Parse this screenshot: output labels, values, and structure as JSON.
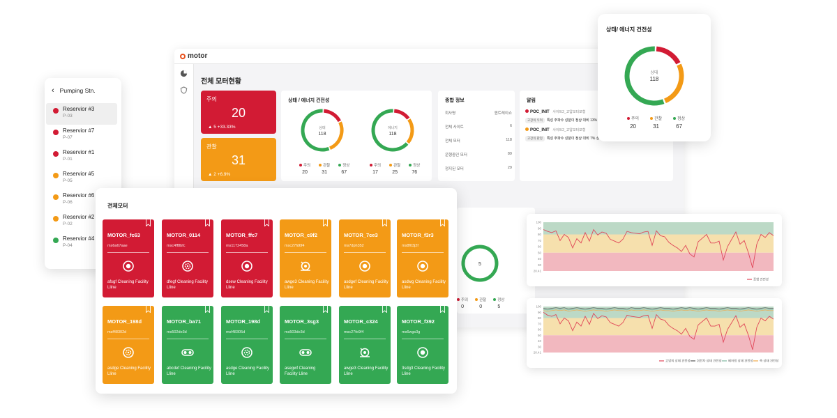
{
  "colors": {
    "danger": "#d21b34",
    "warning": "#f39a16",
    "normal": "#34a853",
    "brand": "#e8511d"
  },
  "app": {
    "name": "motor"
  },
  "dashboard": {
    "title": "전체 모터현황",
    "stat_alert": {
      "label": "주의",
      "value": "20",
      "change": "▲ 5  +33.33%"
    },
    "stat_watch": {
      "label": "관찰",
      "value": "31",
      "change": "▲ 2  +6.9%"
    },
    "health_panel": {
      "title": "상태 / 에너지 건전성",
      "donut_a": {
        "label": "상태",
        "total": "118"
      },
      "donut_b": {
        "label": "에너지",
        "total": "118"
      },
      "legend_a": [
        {
          "label": "주의",
          "value": "20"
        },
        {
          "label": "관찰",
          "value": "31"
        },
        {
          "label": "정상",
          "value": "67"
        }
      ],
      "legend_b": [
        {
          "label": "주의",
          "value": "17"
        },
        {
          "label": "관찰",
          "value": "25"
        },
        {
          "label": "정상",
          "value": "76"
        }
      ]
    },
    "info_panel": {
      "title": "종합 정보",
      "rows": [
        {
          "k": "회사명",
          "v": "원트레이쇼"
        },
        {
          "k": "전체 사이트",
          "v": "6"
        },
        {
          "k": "전체 모터",
          "v": "118"
        },
        {
          "k": "운행중인 모터",
          "v": "89"
        },
        {
          "k": "정지된 모터",
          "v": "29"
        }
      ]
    },
    "alerts_panel": {
      "title": "알림",
      "items": [
        {
          "title": "POC_INIT",
          "sub": "사이트2_고압모터모형",
          "tag": "고장의 우려",
          "desc": "특성 주파수 성분이 정상 대비 13% 상"
        },
        {
          "title": "POC_INIT",
          "sub": "사이트2_고압모터모형",
          "tag": "고장의 판정",
          "desc": "특성 주파수 성분이 정상 대비 7% 상"
        }
      ]
    },
    "mini_donut": {
      "total": "5",
      "legend": [
        {
          "label": "주의",
          "value": "0"
        },
        {
          "label": "관찰",
          "value": "0"
        },
        {
          "label": "정상",
          "value": "5"
        }
      ]
    }
  },
  "pumping": {
    "title": "Pumping Stn.",
    "items": [
      {
        "name": "Reservior #3",
        "code": "P-03",
        "status": "danger"
      },
      {
        "name": "Reservior #7",
        "code": "P-07",
        "status": "danger"
      },
      {
        "name": "Reservior #1",
        "code": "P-01",
        "status": "danger"
      },
      {
        "name": "Reservior #5",
        "code": "P-05",
        "status": "warning"
      },
      {
        "name": "Reservior #6",
        "code": "P-06",
        "status": "warning"
      },
      {
        "name": "Reservior #2",
        "code": "P-02",
        "status": "warning"
      },
      {
        "name": "Reservior #4",
        "code": "P-04",
        "status": "normal"
      }
    ]
  },
  "motors": {
    "title": "전체모터",
    "items": [
      {
        "name": "MOTOR_fc63",
        "code": "ms6a67aae",
        "desc": "afsgf Cleaning Facility Lline",
        "status": "danger",
        "icon": "target-icon"
      },
      {
        "name": "MOTOR_0114",
        "code": "msc4ff8bfc",
        "desc": "dfegf Cleaning Facility Lline",
        "status": "danger",
        "icon": "fan-icon"
      },
      {
        "name": "MOTOR_ffc7",
        "code": "ms1172458a",
        "desc": "dsew Cleaning Facility Lline",
        "status": "danger",
        "icon": "target-icon"
      },
      {
        "name": "MOTOR_c9f2",
        "code": "msc27fd6f4",
        "desc": "awge3 Cleaning Facility Lline",
        "status": "warning",
        "icon": "pump-icon"
      },
      {
        "name": "MOTOR_7ce3",
        "code": "ms7dph352",
        "desc": "asdgef Cleaning Facility Lline",
        "status": "warning",
        "icon": "target-icon"
      },
      {
        "name": "MOTOR_f3r3",
        "code": "ms8f03j2f",
        "desc": "asdwg Cleaning Facility Lline",
        "status": "warning",
        "icon": "target-icon"
      },
      {
        "name": "MOTOR_198d",
        "code": "msf48302d",
        "desc": "asdge Cleaning Facility Lline",
        "status": "warning",
        "icon": "fan-icon"
      },
      {
        "name": "MOTOR_ba71",
        "code": "ms502de3d",
        "desc": "abcdef Cleaning Facility Lline",
        "status": "normal",
        "icon": "conveyor-icon"
      },
      {
        "name": "MOTOR_198d",
        "code": "msf48305d",
        "desc": "asdge Cleaning Facility Lline",
        "status": "normal",
        "icon": "fan-icon"
      },
      {
        "name": "MOTOR_3sg3",
        "code": "ms503de3d",
        "desc": "asegwf Cleaning Facility Lline",
        "status": "normal",
        "icon": "conveyor-icon"
      },
      {
        "name": "MOTOR_c324",
        "code": "msc27fe9f4",
        "desc": "awge3 Cleaning Facility Lline",
        "status": "normal",
        "icon": "pump-icon"
      },
      {
        "name": "MOTOR_f392",
        "code": "ms6wgs3g",
        "desc": "3sdg3 Cleaning Facility Lline",
        "status": "normal",
        "icon": "target-icon"
      }
    ]
  },
  "status_card": {
    "title": "상태/ 에너지 건전성",
    "donut": {
      "label": "상태",
      "total": "118"
    },
    "legend": [
      {
        "label": "주의",
        "value": "20"
      },
      {
        "label": "관찰",
        "value": "31"
      },
      {
        "label": "정상",
        "value": "67"
      }
    ]
  },
  "chart_data": [
    {
      "type": "line",
      "yticks": [
        "100",
        "90",
        "80",
        "70",
        "60",
        "50",
        "40",
        "30",
        "20.41"
      ],
      "ylim": [
        20,
        100
      ],
      "bands": [
        {
          "from": 80,
          "to": 100,
          "color": "#bcd9c6"
        },
        {
          "from": 50,
          "to": 80,
          "color": "#f6e0ad"
        },
        {
          "from": 20,
          "to": 50,
          "color": "#f2b8bf"
        }
      ],
      "series": [
        {
          "name": "종합 건전성",
          "color": "#e04658",
          "values": [
            88,
            85,
            83,
            86,
            70,
            80,
            75,
            58,
            73,
            66,
            83,
            69,
            88,
            79,
            84,
            82,
            72,
            69,
            66,
            72,
            85,
            83,
            82,
            81,
            84,
            85,
            62,
            86,
            78,
            76,
            67,
            62,
            58,
            52,
            62,
            48,
            43,
            68,
            74,
            80,
            66,
            66,
            69,
            38,
            60,
            72,
            84,
            64,
            70,
            50,
            25,
            64,
            80,
            75,
            83,
            78
          ]
        }
      ]
    },
    {
      "type": "line",
      "yticks": [
        "100",
        "90",
        "80",
        "70",
        "60",
        "50",
        "40",
        "30",
        "20.41"
      ],
      "ylim": [
        20,
        100
      ],
      "bands": [
        {
          "from": 80,
          "to": 100,
          "color": "#bcd9c6"
        },
        {
          "from": 50,
          "to": 80,
          "color": "#f6e0ad"
        },
        {
          "from": 20,
          "to": 50,
          "color": "#f2b8bf"
        }
      ],
      "series": [
        {
          "name": "고압의 상태 건전성",
          "color": "#e04658",
          "values": [
            90,
            85,
            83,
            86,
            70,
            80,
            75,
            58,
            73,
            66,
            83,
            69,
            88,
            79,
            84,
            82,
            72,
            69,
            66,
            72,
            85,
            83,
            82,
            81,
            84,
            85,
            62,
            86,
            78,
            76,
            67,
            62,
            58,
            52,
            62,
            48,
            43,
            68,
            74,
            80,
            66,
            66,
            69,
            38,
            60,
            72,
            84,
            64,
            70,
            50,
            25,
            64,
            80,
            75,
            83,
            78
          ]
        },
        {
          "name": "회전자 상태 건전성",
          "color": "#555555",
          "values": [
            97,
            96,
            97,
            98,
            97,
            98,
            96,
            97,
            98,
            97,
            96,
            97,
            98,
            97,
            97,
            96,
            97,
            98,
            97,
            97,
            96,
            98,
            97,
            97,
            98,
            97,
            96,
            97,
            98,
            97,
            97,
            96,
            97,
            98,
            97,
            98,
            97,
            96,
            97,
            98,
            97,
            97,
            96,
            97,
            98,
            97,
            97,
            96,
            97,
            98,
            97,
            96,
            97,
            98,
            97,
            97
          ]
        },
        {
          "name": "베어링 상태 건전성",
          "color": "#7fb6a0",
          "values": [
            95,
            94,
            95,
            96,
            95,
            96,
            94,
            95,
            96,
            95,
            94,
            95,
            96,
            95,
            95,
            94,
            95,
            96,
            95,
            95,
            94,
            96,
            95,
            95,
            96,
            95,
            94,
            95,
            96,
            95,
            95,
            94,
            95,
            96,
            95,
            96,
            95,
            94,
            95,
            96,
            95,
            95,
            94,
            95,
            96,
            95,
            95,
            94,
            95,
            96,
            95,
            94,
            95,
            96,
            95,
            95
          ]
        },
        {
          "name": "축 상태 건전성",
          "color": "#f0a94a",
          "values": [
            93,
            92,
            93,
            94,
            93,
            94,
            92,
            93,
            94,
            93,
            92,
            93,
            94,
            93,
            93,
            92,
            93,
            94,
            93,
            93,
            92,
            94,
            93,
            93,
            94,
            93,
            92,
            93,
            94,
            93,
            93,
            92,
            93,
            94,
            93,
            94,
            93,
            92,
            93,
            94,
            93,
            93,
            92,
            93,
            94,
            93,
            93,
            92,
            93,
            94,
            93,
            92,
            93,
            94,
            93,
            93
          ]
        }
      ]
    }
  ]
}
